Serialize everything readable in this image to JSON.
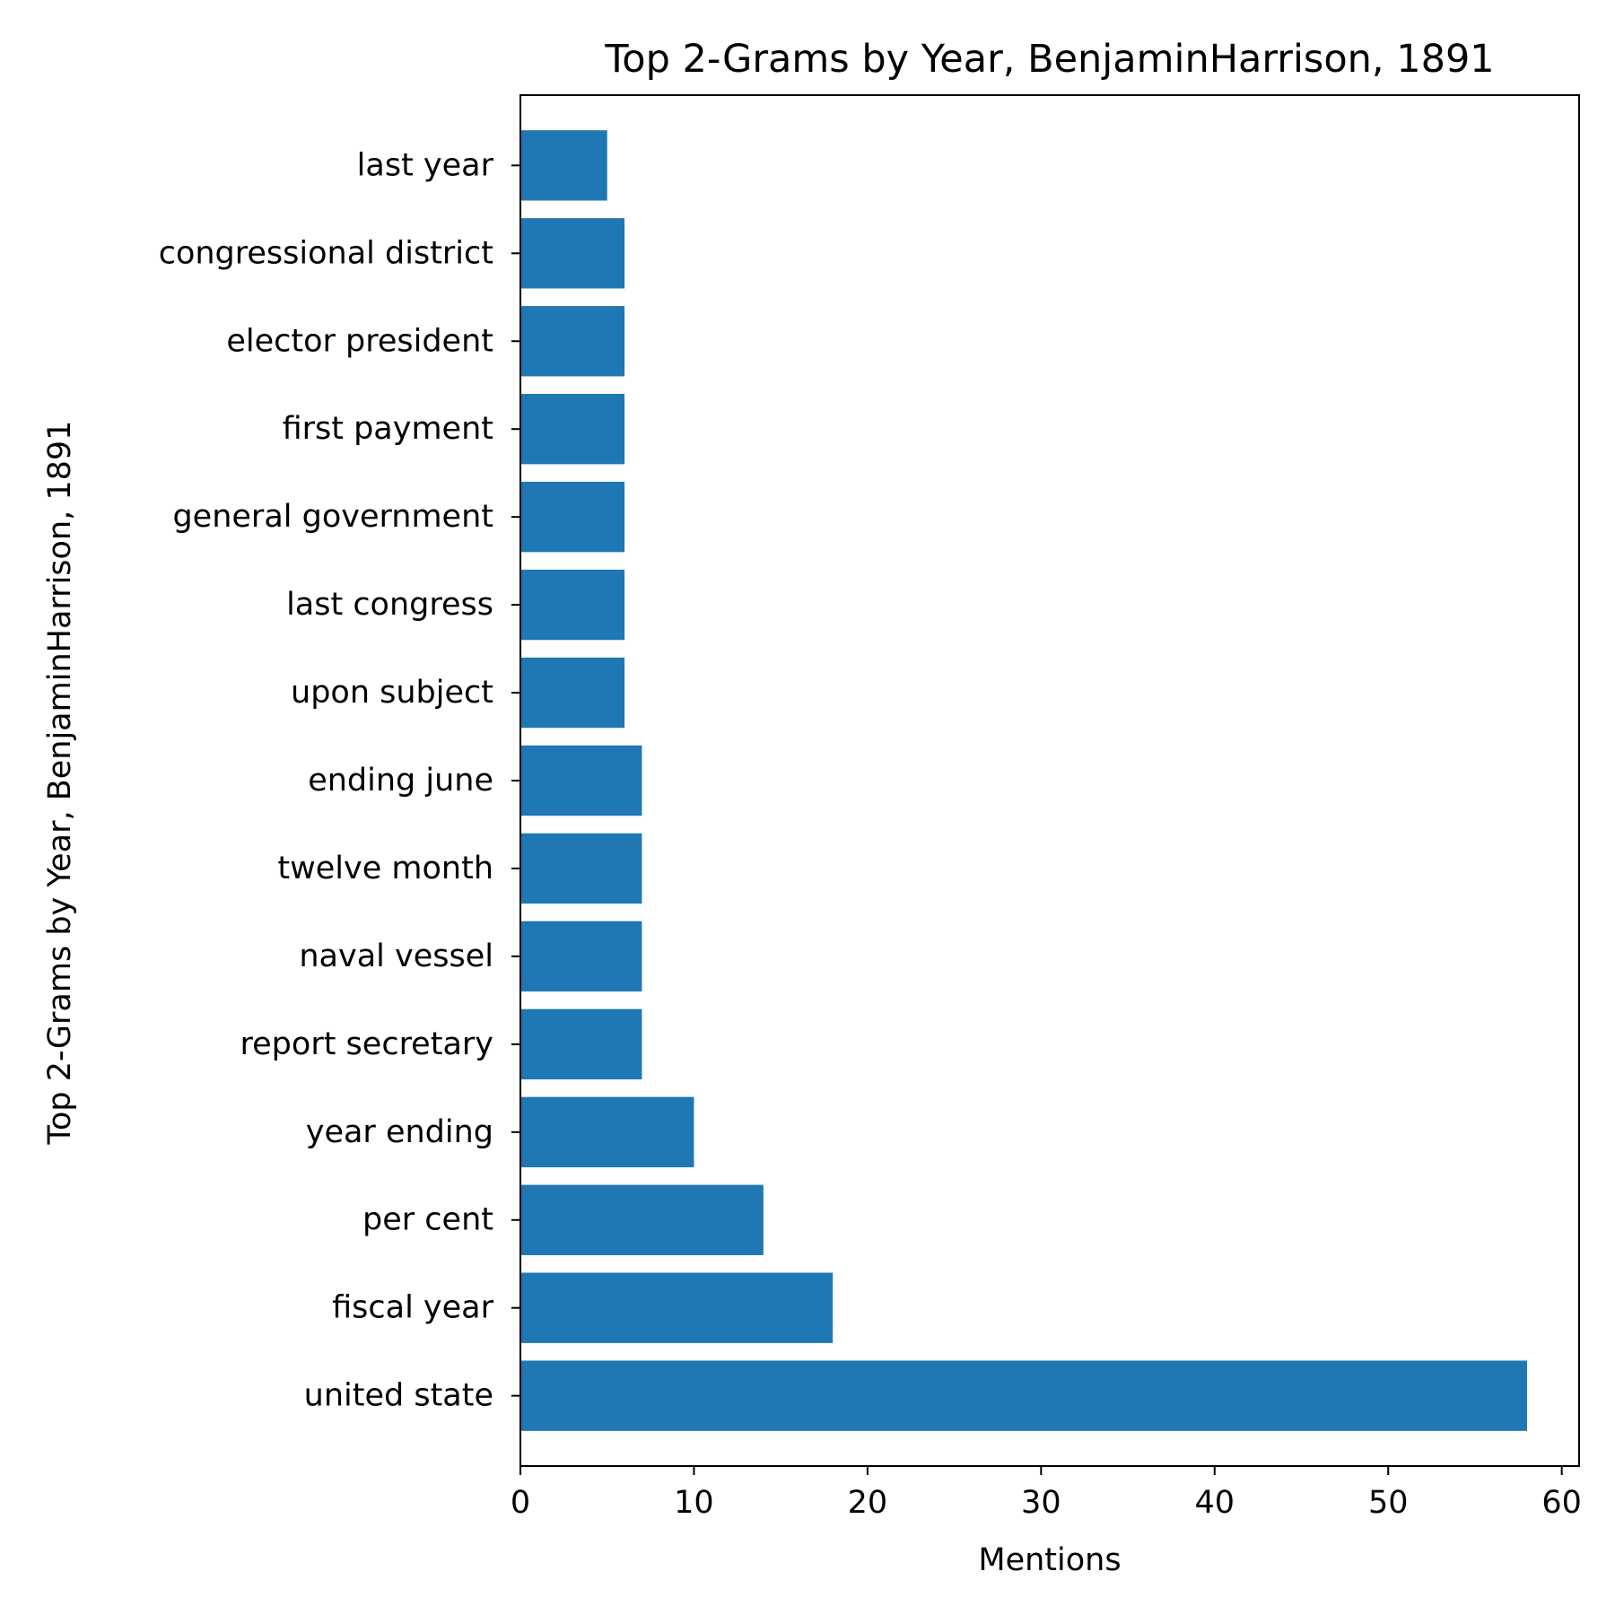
{
  "chart_data": {
    "type": "bar",
    "orientation": "horizontal",
    "title": "Top 2-Grams by Year, BenjaminHarrison, 1891",
    "xlabel": "Mentions",
    "ylabel": "Top 2-Grams by Year, BenjaminHarrison, 1891",
    "xlim": [
      0,
      61
    ],
    "xticks": [
      0,
      10,
      20,
      30,
      40,
      50,
      60
    ],
    "grid": false,
    "color": "#1f77b4",
    "categories": [
      "united state",
      "fiscal year",
      "per cent",
      "year ending",
      "report secretary",
      "naval vessel",
      "twelve month",
      "ending june",
      "upon subject",
      "last congress",
      "general government",
      "first payment",
      "elector president",
      "congressional district",
      "last year"
    ],
    "values": [
      58,
      18,
      14,
      10,
      7,
      7,
      7,
      7,
      6,
      6,
      6,
      6,
      6,
      6,
      5
    ]
  }
}
